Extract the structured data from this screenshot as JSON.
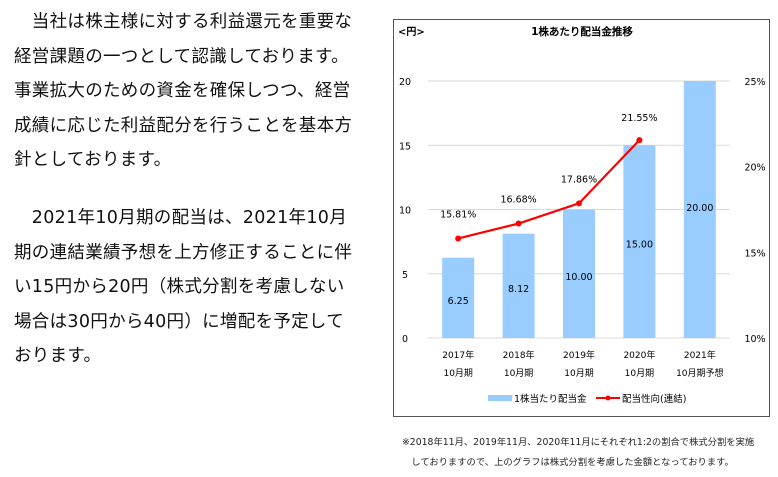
{
  "text": {
    "paragraph1": [
      "　当社は株主様に対する利益還元を重要な",
      "経営課題の一つとして認識しております。",
      "事業拡大のための資金を確保しつつ、経営",
      "成績に応じた利益配分を行うことを基本方",
      "針としております。"
    ],
    "paragraph2": [
      "　2021年10月期の配当は、2021年10月",
      "期の連結業績予想を上方修正することに伴",
      "い15円から20円（株式分割を考慮しない",
      "場合は30円から40円）に増配を予定して",
      "おります。"
    ]
  },
  "note": [
    "※2018年11月、2019年11月、2020年11月にそれぞれ1:2の割合で株式分割を実施",
    "　しておりますので、上のグラフは株式分割を考慮した金額となっております。"
  ],
  "colors": {
    "bar": "#99CCFF",
    "line": "#FF0000",
    "grid": "#D9D9D9"
  },
  "chart_data": {
    "type": "bar",
    "title": "1株あたり配当金推移",
    "ylabel": "<円>",
    "categories": [
      [
        "2017年",
        "10月期"
      ],
      [
        "2018年",
        "10月期"
      ],
      [
        "2019年",
        "10月期"
      ],
      [
        "2020年",
        "10月期"
      ],
      [
        "2021年",
        "10月期予想"
      ]
    ],
    "ylim": [
      0,
      20
    ],
    "yticks": [
      "0",
      "5",
      "10",
      "15",
      "20"
    ],
    "y2lim": [
      10,
      25
    ],
    "y2ticks": [
      "10%",
      "15%",
      "20%",
      "25%"
    ],
    "grid": true,
    "legend": "bottom",
    "series": [
      {
        "name": "1株当たり配当金",
        "type": "bar",
        "values": [
          6.25,
          8.12,
          10.0,
          15.0,
          20.0
        ],
        "labels": [
          "6.25",
          "8.12",
          "10.00",
          "15.00",
          "20.00"
        ]
      },
      {
        "name": "配当性向(連結)",
        "type": "line",
        "axis": "right",
        "values": [
          15.81,
          16.68,
          17.86,
          21.55,
          null
        ],
        "labels": [
          "15.81%",
          "16.68%",
          "17.86%",
          "21.55%",
          ""
        ]
      }
    ]
  }
}
